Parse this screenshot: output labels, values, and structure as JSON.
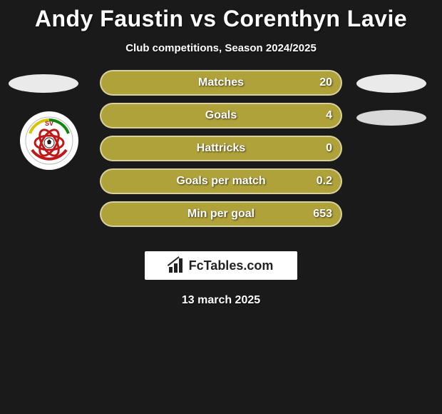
{
  "title": "Andy Faustin vs Corenthyn Lavie",
  "subtitle": "Club competitions, Season 2024/2025",
  "date": "13 march 2025",
  "brand": {
    "icon": "bar-chart-icon",
    "text": "FcTables.com"
  },
  "bar_fill_color": "#b0a23a",
  "bar_fill_percent": 100,
  "ellipse_color_left": "#eaeaea",
  "ellipse_color_right1": "#eaeaea",
  "ellipse_color_right2": "#d9d9d9",
  "stats": [
    {
      "label": "Matches",
      "value": "20"
    },
    {
      "label": "Goals",
      "value": "4"
    },
    {
      "label": "Hattricks",
      "value": "0"
    },
    {
      "label": "Goals per match",
      "value": "0.2"
    },
    {
      "label": "Min per goal",
      "value": "653"
    }
  ],
  "badge": {
    "name": "club-badge",
    "top_text": "SV"
  }
}
